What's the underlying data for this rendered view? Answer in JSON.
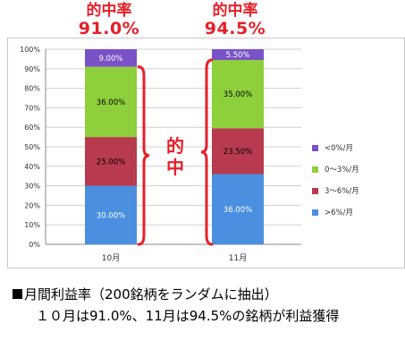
{
  "hit_labels": [
    {
      "title": "的中率",
      "rate": "91.0%"
    },
    {
      "title": "的中率",
      "rate": "94.5%"
    }
  ],
  "middle_hit": {
    "char1": "的",
    "char2": "中"
  },
  "caption": {
    "line1": "月間利益率（200銘柄をランダムに抽出）",
    "line2": "１０月は91.0%、11月は94.5%の銘柄が利益獲得"
  },
  "chart_data": {
    "type": "bar",
    "stacked": true,
    "categories": [
      "10月",
      "11月"
    ],
    "ylim": [
      0,
      100
    ],
    "yticks": [
      "0%",
      "10%",
      "20%",
      "30%",
      "40%",
      "50%",
      "60%",
      "70%",
      "80%",
      "90%",
      "100%"
    ],
    "grid": true,
    "legend_position": "right",
    "series": [
      {
        "name": ">6%/月",
        "values": [
          30.0,
          36.0
        ],
        "labels": [
          "30.00%",
          "36.00%"
        ],
        "color": "#4a8fe0",
        "label_color": "#ffffff"
      },
      {
        "name": "3〜6%/月",
        "values": [
          25.0,
          23.5
        ],
        "labels": [
          "25.00%",
          "23.50%"
        ],
        "color": "#b83a4e",
        "label_color": "#000000"
      },
      {
        "name": "0〜3%/月",
        "values": [
          36.0,
          35.0
        ],
        "labels": [
          "36.00%",
          "35.00%"
        ],
        "color": "#8ed03c",
        "label_color": "#000000"
      },
      {
        "name": "<0%/月",
        "values": [
          9.0,
          5.5
        ],
        "labels": [
          "9.00%",
          "5.50%"
        ],
        "color": "#7a52c8",
        "label_color": "#ffffff"
      }
    ],
    "accent_color": "#e5202a"
  }
}
